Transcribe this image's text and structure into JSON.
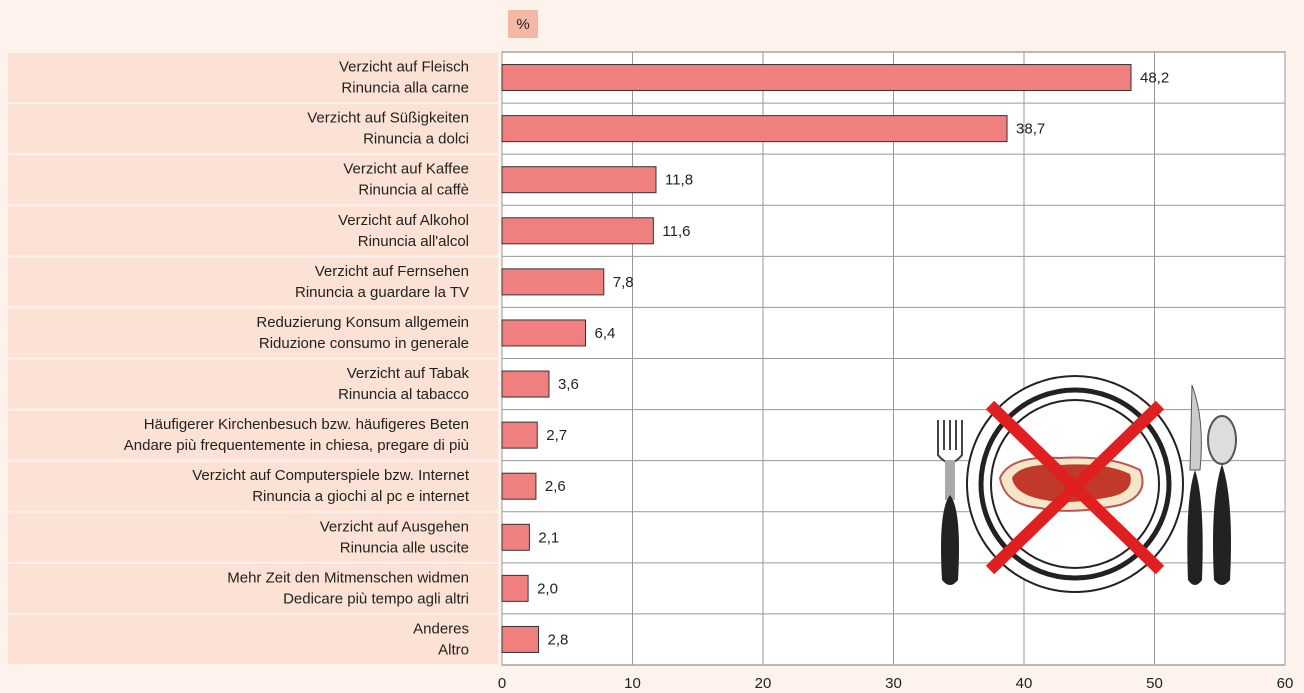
{
  "chart_data": {
    "type": "hbar",
    "unit": "%",
    "categories": [
      [
        "Verzicht auf Fleisch",
        "Rinuncia alla carne"
      ],
      [
        "Verzicht auf Süßigkeiten",
        "Rinuncia a dolci"
      ],
      [
        "Verzicht auf Kaffee",
        "Rinuncia al caffè"
      ],
      [
        "Verzicht auf Alkohol",
        "Rinuncia all'alcol"
      ],
      [
        "Verzicht auf Fernsehen",
        "Rinuncia a guardare la TV"
      ],
      [
        "Reduzierung Konsum allgemein",
        "Riduzione consumo in generale"
      ],
      [
        "Verzicht auf Tabak",
        "Rinuncia al tabacco"
      ],
      [
        "Häufigerer Kirchenbesuch bzw. häufigeres Beten",
        "Andare più frequentemente in chiesa, pregare di più"
      ],
      [
        "Verzicht auf Computerspiele bzw. Internet",
        "Rinuncia a giochi al pc e internet"
      ],
      [
        "Verzicht auf Ausgehen",
        "Rinuncia alle uscite"
      ],
      [
        "Mehr Zeit den Mitmenschen widmen",
        "Dedicare più tempo agli altri"
      ],
      [
        "Anderes",
        "Altro"
      ]
    ],
    "values": [
      48.2,
      38.7,
      11.8,
      11.6,
      7.8,
      6.4,
      3.6,
      2.7,
      2.6,
      2.1,
      2.0,
      2.8
    ],
    "value_labels": [
      "48,2",
      "38,7",
      "11,8",
      "11,6",
      "7,8",
      "6,4",
      "3,6",
      "2,7",
      "2,6",
      "2,1",
      "2,0",
      "2,8"
    ],
    "color": "#f08080",
    "xlim": [
      0,
      60
    ],
    "xticks": [
      0,
      10,
      20,
      30,
      40,
      50,
      60
    ],
    "grid": true
  }
}
